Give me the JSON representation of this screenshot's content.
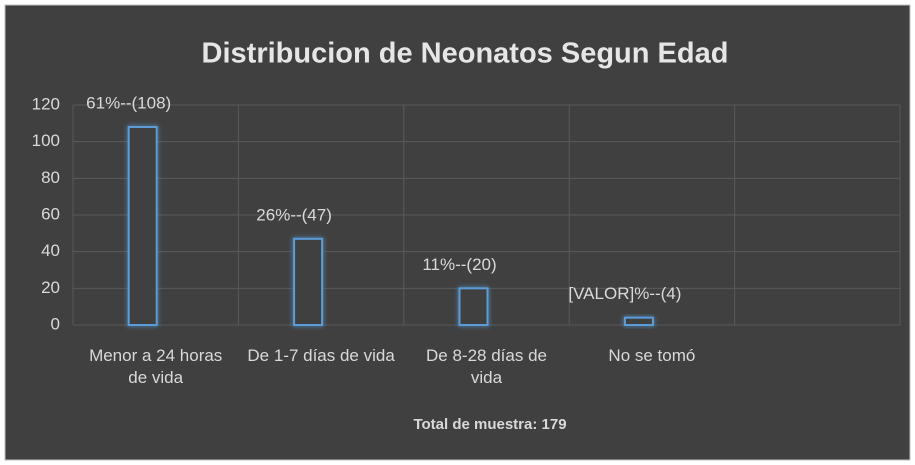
{
  "chart_data": {
    "type": "bar",
    "title": "Distribucion de Neonatos Segun Edad",
    "categories": [
      "Menor a 24 horas de vida",
      "De 1-7 días de vida",
      "De 8-28 días de vida",
      "No se tomó",
      null
    ],
    "values": [
      108,
      47,
      20,
      4,
      null
    ],
    "value_labels": [
      "61%--(108)",
      "26%--(47)",
      "11%--(20)",
      "[VALOR]%--(4)",
      null
    ],
    "x_label": "Total de muestra: 179",
    "color": "#5b9bd5",
    "ylim": [
      0,
      120
    ],
    "yticks": [
      0,
      20,
      40,
      60,
      80,
      100,
      120
    ],
    "grid": true
  }
}
